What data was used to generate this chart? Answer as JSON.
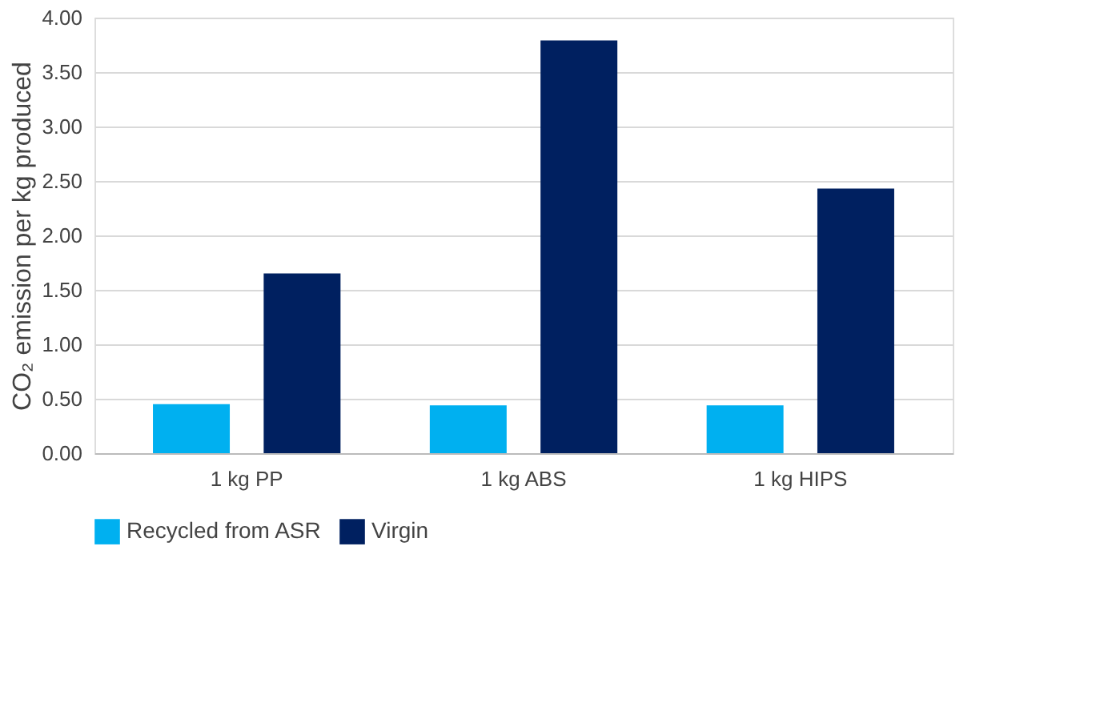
{
  "chart_data": {
    "type": "bar",
    "ylabel": "CO₂ emission per kg produced",
    "categories": [
      "1 kg PP",
      "1 kg ABS",
      "1 kg HIPS"
    ],
    "series": [
      {
        "name": "Recycled from ASR",
        "color": "#00b0f0",
        "values": [
          0.45,
          0.44,
          0.44
        ]
      },
      {
        "name": "Virgin",
        "color": "#002060",
        "values": [
          1.65,
          3.79,
          2.43
        ]
      }
    ],
    "ylim": [
      0,
      4
    ],
    "yticks": [
      {
        "value": 0,
        "label": "0.00"
      },
      {
        "value": 0.5,
        "label": "0.50"
      },
      {
        "value": 1,
        "label": "1.00"
      },
      {
        "value": 1.5,
        "label": "1.50"
      },
      {
        "value": 2,
        "label": "2.00"
      },
      {
        "value": 2.5,
        "label": "2.50"
      },
      {
        "value": 3,
        "label": "3.00"
      },
      {
        "value": 3.5,
        "label": "3.50"
      },
      {
        "value": 4,
        "label": "4.00"
      }
    ],
    "grid": "y",
    "legend": "bottom"
  }
}
